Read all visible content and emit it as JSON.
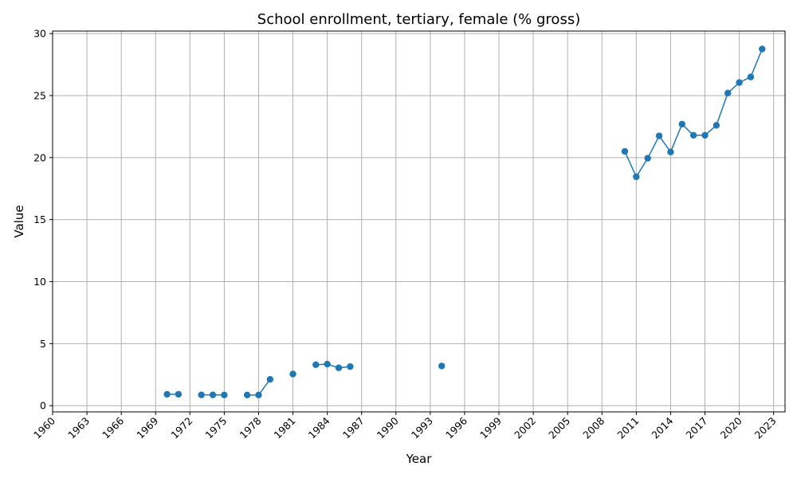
{
  "chart_data": {
    "type": "line",
    "title": "School enrollment, tertiary, female (% gross)",
    "xlabel": "Year",
    "ylabel": "Value",
    "xlim": [
      1960,
      2024
    ],
    "ylim": [
      -0.5,
      30.2
    ],
    "grid": true,
    "marker": "circle",
    "color": "#1f77b4",
    "x_ticks": [
      "1960",
      "1963",
      "1966",
      "1969",
      "1972",
      "1975",
      "1978",
      "1981",
      "1984",
      "1987",
      "1990",
      "1993",
      "1996",
      "1999",
      "2002",
      "2005",
      "2008",
      "2011",
      "2014",
      "2017",
      "2020",
      "2023"
    ],
    "y_ticks": [
      "0",
      "5",
      "10",
      "15",
      "20",
      "25",
      "30"
    ],
    "series": [
      {
        "points": [
          [
            1960,
            null
          ],
          [
            1961,
            null
          ],
          [
            1962,
            null
          ],
          [
            1963,
            null
          ],
          [
            1964,
            null
          ],
          [
            1965,
            null
          ],
          [
            1966,
            null
          ],
          [
            1967,
            null
          ],
          [
            1968,
            null
          ],
          [
            1969,
            null
          ],
          [
            1970,
            0.92
          ],
          [
            1971,
            0.92
          ],
          [
            1972,
            null
          ],
          [
            1973,
            0.87
          ],
          [
            1974,
            0.87
          ],
          [
            1975,
            0.86
          ],
          [
            1976,
            null
          ],
          [
            1977,
            0.86
          ],
          [
            1978,
            0.86
          ],
          [
            1979,
            2.12
          ],
          [
            1980,
            null
          ],
          [
            1981,
            2.55
          ],
          [
            1982,
            null
          ],
          [
            1983,
            3.3
          ],
          [
            1984,
            3.35
          ],
          [
            1985,
            3.05
          ],
          [
            1986,
            3.15
          ],
          [
            1987,
            null
          ],
          [
            1988,
            null
          ],
          [
            1989,
            null
          ],
          [
            1990,
            null
          ],
          [
            1991,
            null
          ],
          [
            1992,
            null
          ],
          [
            1993,
            null
          ],
          [
            1994,
            3.2
          ],
          [
            1995,
            null
          ],
          [
            1996,
            null
          ],
          [
            1997,
            null
          ],
          [
            1998,
            null
          ],
          [
            1999,
            null
          ],
          [
            2000,
            null
          ],
          [
            2001,
            null
          ],
          [
            2002,
            null
          ],
          [
            2003,
            null
          ],
          [
            2004,
            null
          ],
          [
            2005,
            null
          ],
          [
            2006,
            null
          ],
          [
            2007,
            null
          ],
          [
            2008,
            null
          ],
          [
            2009,
            null
          ],
          [
            2010,
            20.5
          ],
          [
            2011,
            18.45
          ],
          [
            2012,
            19.95
          ],
          [
            2013,
            21.75
          ],
          [
            2014,
            20.45
          ],
          [
            2015,
            22.7
          ],
          [
            2016,
            21.8
          ],
          [
            2017,
            21.8
          ],
          [
            2018,
            22.6
          ],
          [
            2019,
            25.2
          ],
          [
            2020,
            26.05
          ],
          [
            2021,
            26.5
          ],
          [
            2022,
            28.75
          ]
        ]
      }
    ]
  }
}
